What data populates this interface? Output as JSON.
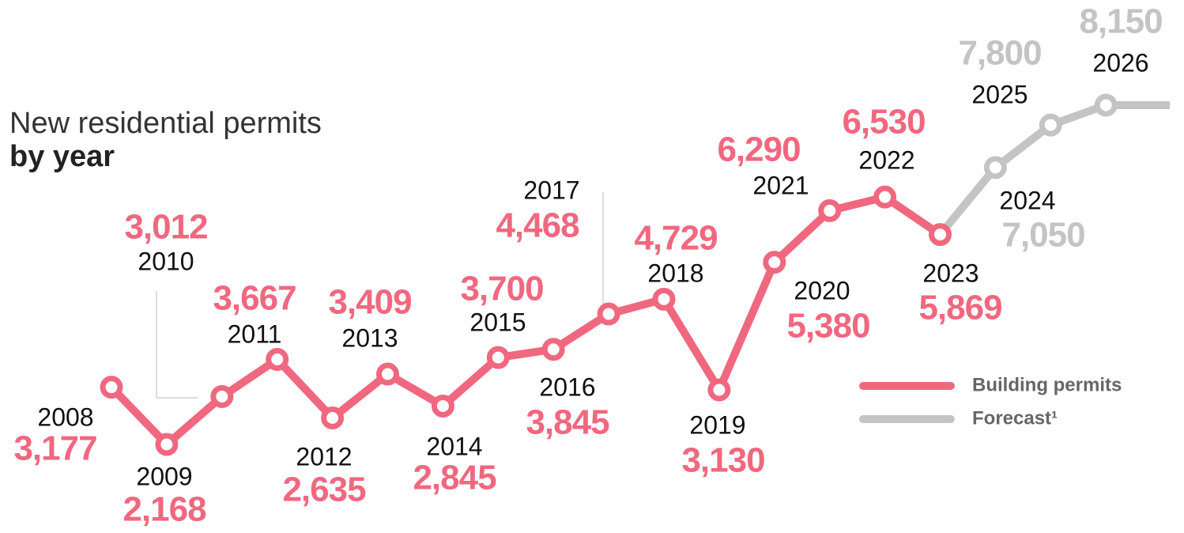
{
  "chart_data": {
    "type": "line",
    "title": "New residential permits",
    "subtitle": "by year",
    "categories": [
      "2008",
      "2009",
      "2010",
      "2011",
      "2012",
      "2013",
      "2014",
      "2015",
      "2016",
      "2017",
      "2018",
      "2019",
      "2020",
      "2021",
      "2022",
      "2023",
      "2024",
      "2025",
      "2026"
    ],
    "series": [
      {
        "name": "Building permits",
        "color": "#f0687f",
        "values": [
          3177,
          2168,
          3012,
          3667,
          2635,
          3409,
          2845,
          3700,
          3845,
          4468,
          4729,
          3130,
          5380,
          6290,
          6530,
          5869,
          null,
          null,
          null
        ],
        "value_labels": [
          "3,177",
          "2,168",
          "3,012",
          "3,667",
          "2,635",
          "3,409",
          "2,845",
          "3,700",
          "3,845",
          "4,468",
          "4,729",
          "3,130",
          "5,380",
          "6,290",
          "6,530",
          "5,869",
          null,
          null,
          null
        ]
      },
      {
        "name": "Forecast¹",
        "color": "#c4c4c4",
        "values": [
          null,
          null,
          null,
          null,
          null,
          null,
          null,
          null,
          null,
          null,
          null,
          null,
          null,
          null,
          null,
          null,
          7050,
          7800,
          8150
        ],
        "value_labels": [
          null,
          null,
          null,
          null,
          null,
          null,
          null,
          null,
          null,
          null,
          null,
          null,
          null,
          null,
          null,
          null,
          "7,050",
          "7,800",
          "8,150"
        ]
      }
    ],
    "legend": "bottom-right"
  }
}
